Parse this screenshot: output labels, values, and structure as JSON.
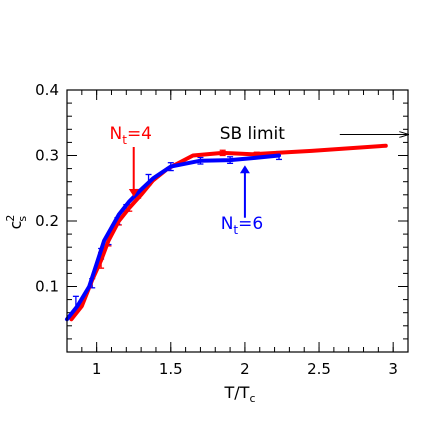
{
  "chart_data": {
    "type": "line",
    "xlabel": {
      "main": "T/T",
      "sub": "c"
    },
    "ylabel": {
      "main": "c",
      "sup": "2",
      "sub": "s"
    },
    "xlim": [
      0.8,
      3.1
    ],
    "ylim": [
      0.0,
      0.4
    ],
    "xticks": [
      1,
      1.5,
      2,
      2.5,
      3
    ],
    "xtick_labels": [
      "1",
      "1.5",
      "2",
      "2.5",
      "3"
    ],
    "yticks": [
      0.1,
      0.2,
      0.3,
      0.4
    ],
    "ytick_labels": [
      "0.1",
      "0.2",
      "0.3",
      "0.4"
    ],
    "x_minor_step": 0.1,
    "y_minor_step": 0.02,
    "grid": false,
    "series": [
      {
        "name": "Nt=4",
        "color": "#ff0000",
        "x": [
          0.83,
          0.9,
          0.97,
          1.03,
          1.08,
          1.15,
          1.22,
          1.3,
          1.38,
          1.48,
          1.65,
          1.85,
          2.05,
          2.45,
          2.95
        ],
        "y": [
          0.05,
          0.07,
          0.11,
          0.14,
          0.17,
          0.2,
          0.22,
          0.24,
          0.262,
          0.28,
          0.3,
          0.304,
          0.302,
          0.307,
          0.315
        ],
        "errors": [
          {
            "x": 1.03,
            "y": 0.14,
            "err": 0.012
          },
          {
            "x": 1.08,
            "y": 0.17,
            "err": 0.008
          },
          {
            "x": 1.15,
            "y": 0.2,
            "err": 0.006
          },
          {
            "x": 1.22,
            "y": 0.22,
            "err": 0.005
          },
          {
            "x": 1.28,
            "y": 0.24,
            "err": 0.005
          },
          {
            "x": 1.85,
            "y": 0.304,
            "err": 0.004
          },
          {
            "x": 2.08,
            "y": 0.302,
            "err": 0.003
          }
        ]
      },
      {
        "name": "Nt=6",
        "color": "#0000ff",
        "x": [
          0.8,
          0.87,
          0.95,
          1.0,
          1.05,
          1.1,
          1.15,
          1.22,
          1.3,
          1.38,
          1.5,
          1.7,
          1.9,
          2.05,
          2.23
        ],
        "y": [
          0.05,
          0.07,
          0.1,
          0.135,
          0.17,
          0.19,
          0.21,
          0.23,
          0.248,
          0.265,
          0.283,
          0.292,
          0.293,
          0.296,
          0.3
        ],
        "errors": [
          {
            "x": 0.86,
            "y": 0.075,
            "err": 0.01
          },
          {
            "x": 0.97,
            "y": 0.105,
            "err": 0.007
          },
          {
            "x": 1.03,
            "y": 0.15,
            "err": 0.008
          },
          {
            "x": 1.08,
            "y": 0.17,
            "err": 0.006
          },
          {
            "x": 1.14,
            "y": 0.2,
            "err": 0.005
          },
          {
            "x": 1.2,
            "y": 0.22,
            "err": 0.005
          },
          {
            "x": 1.28,
            "y": 0.243,
            "err": 0.005
          },
          {
            "x": 1.35,
            "y": 0.263,
            "err": 0.008
          },
          {
            "x": 1.5,
            "y": 0.283,
            "err": 0.006
          },
          {
            "x": 1.7,
            "y": 0.292,
            "err": 0.005
          },
          {
            "x": 1.9,
            "y": 0.293,
            "err": 0.005
          },
          {
            "x": 2.23,
            "y": 0.3,
            "err": 0.006
          }
        ]
      }
    ],
    "annotations": [
      {
        "id": "nt4",
        "text_main": "N",
        "text_sub": "t",
        "text_rest": "=4",
        "color": "#ff0000",
        "text_at": [
          1.23,
          0.325
        ],
        "arrow_from": [
          1.25,
          0.313
        ],
        "arrow_to": [
          1.25,
          0.24
        ]
      },
      {
        "id": "nt6",
        "text_main": "N",
        "text_sub": "t",
        "text_rest": "=6",
        "color": "#0000ff",
        "text_at": [
          1.98,
          0.188
        ],
        "arrow_from": [
          2.0,
          0.205
        ],
        "arrow_to": [
          2.0,
          0.282
        ]
      },
      {
        "id": "sb",
        "text": "SB limit",
        "color": "#000000",
        "text_at": [
          2.05,
          0.325
        ],
        "arrow_from": [
          2.64,
          0.332
        ],
        "arrow_to": [
          3.1,
          0.332
        ]
      }
    ]
  }
}
